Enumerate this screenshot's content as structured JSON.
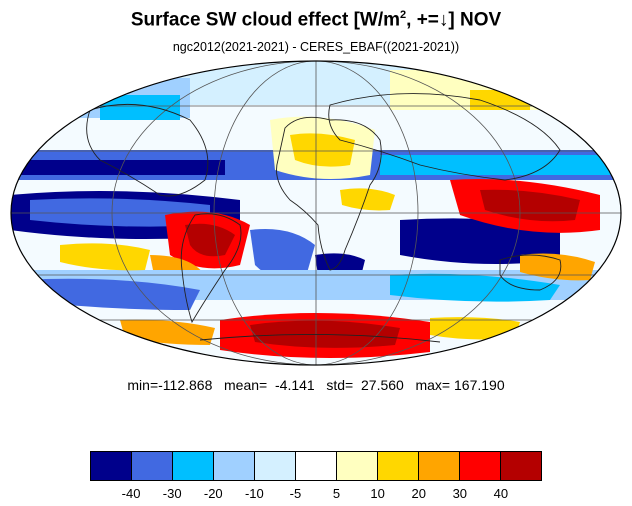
{
  "title": {
    "prefix": "Surface SW cloud effect [W/m",
    "sup": "2",
    "suffix": ", +=↓]  NOV"
  },
  "subtitle": "ngc2012(2021-2021) - CERES_EBAF((2021-2021))",
  "stats": "min=-112.868   mean=  -4.141   std=  27.560   max= 167.190",
  "colorbar": {
    "colors": [
      "#00008b",
      "#4169e1",
      "#00bfff",
      "#a0d0ff",
      "#d4f0ff",
      "#ffffff",
      "#ffffc0",
      "#ffd700",
      "#ffa500",
      "#ff0000",
      "#b40000"
    ],
    "labels": [
      "-40",
      "-30",
      "-20",
      "-10",
      "-5",
      "5",
      "10",
      "20",
      "30",
      "40"
    ]
  }
}
